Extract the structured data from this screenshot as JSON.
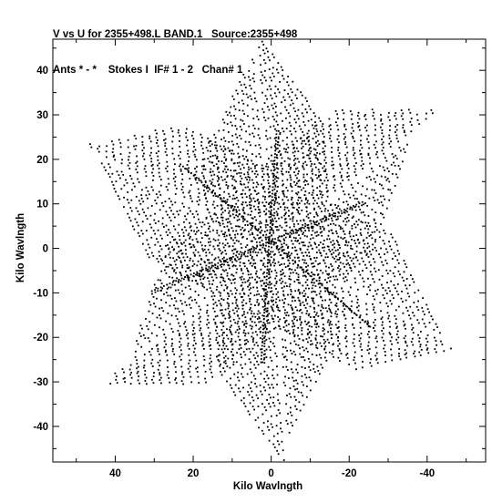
{
  "header": {
    "line1": "V vs U for 2355+498.L BAND.1   Source:2355+498",
    "line2": "Ants * - *    Stokes I  IF# 1 - 2   Chan# 1"
  },
  "chart_data": {
    "type": "scatter",
    "title": "V vs U for 2355+498.L BAND.1   Source:2355+498",
    "subtitle": "Ants * - *    Stokes I  IF# 1 - 2   Chan# 1",
    "xlabel": "Kilo Wavlngth",
    "ylabel": "Kilo Wavlngth",
    "xlim": [
      56,
      -55
    ],
    "ylim": [
      -48,
      47
    ],
    "x_reversed": true,
    "x_ticks": [
      40,
      20,
      0,
      -20,
      -40
    ],
    "x_tick_labels": [
      "40",
      "20",
      "0",
      "-20",
      "-40"
    ],
    "y_ticks": [
      40,
      30,
      20,
      10,
      0,
      -10,
      -20,
      -30,
      -40
    ],
    "y_tick_labels": [
      "40",
      "30",
      "20",
      "10",
      "0",
      "-10",
      "-20",
      "-30",
      "-40"
    ],
    "marker_color": "#000000",
    "grid": false,
    "pattern": "six-armed snowflake uv-coverage (VLA-like Y array); each arm has two symmetric sides (baseline and conjugate)",
    "arms": [
      {
        "angle_deg": 55,
        "max_radius": 53
      },
      {
        "angle_deg": 115,
        "max_radius": 47
      },
      {
        "angle_deg": 175,
        "max_radius": 57
      },
      {
        "angle_deg": 235,
        "max_radius": 53
      },
      {
        "angle_deg": 295,
        "max_radius": 47
      },
      {
        "angle_deg": 355,
        "max_radius": 57
      }
    ],
    "dense_lines": [
      {
        "x": [
          22,
          -26
        ],
        "y": [
          18,
          -18
        ]
      },
      {
        "x": [
          -2,
          2
        ],
        "y": [
          26,
          -26
        ]
      },
      {
        "x": [
          -24,
          30
        ],
        "y": [
          10,
          -10
        ]
      }
    ]
  }
}
